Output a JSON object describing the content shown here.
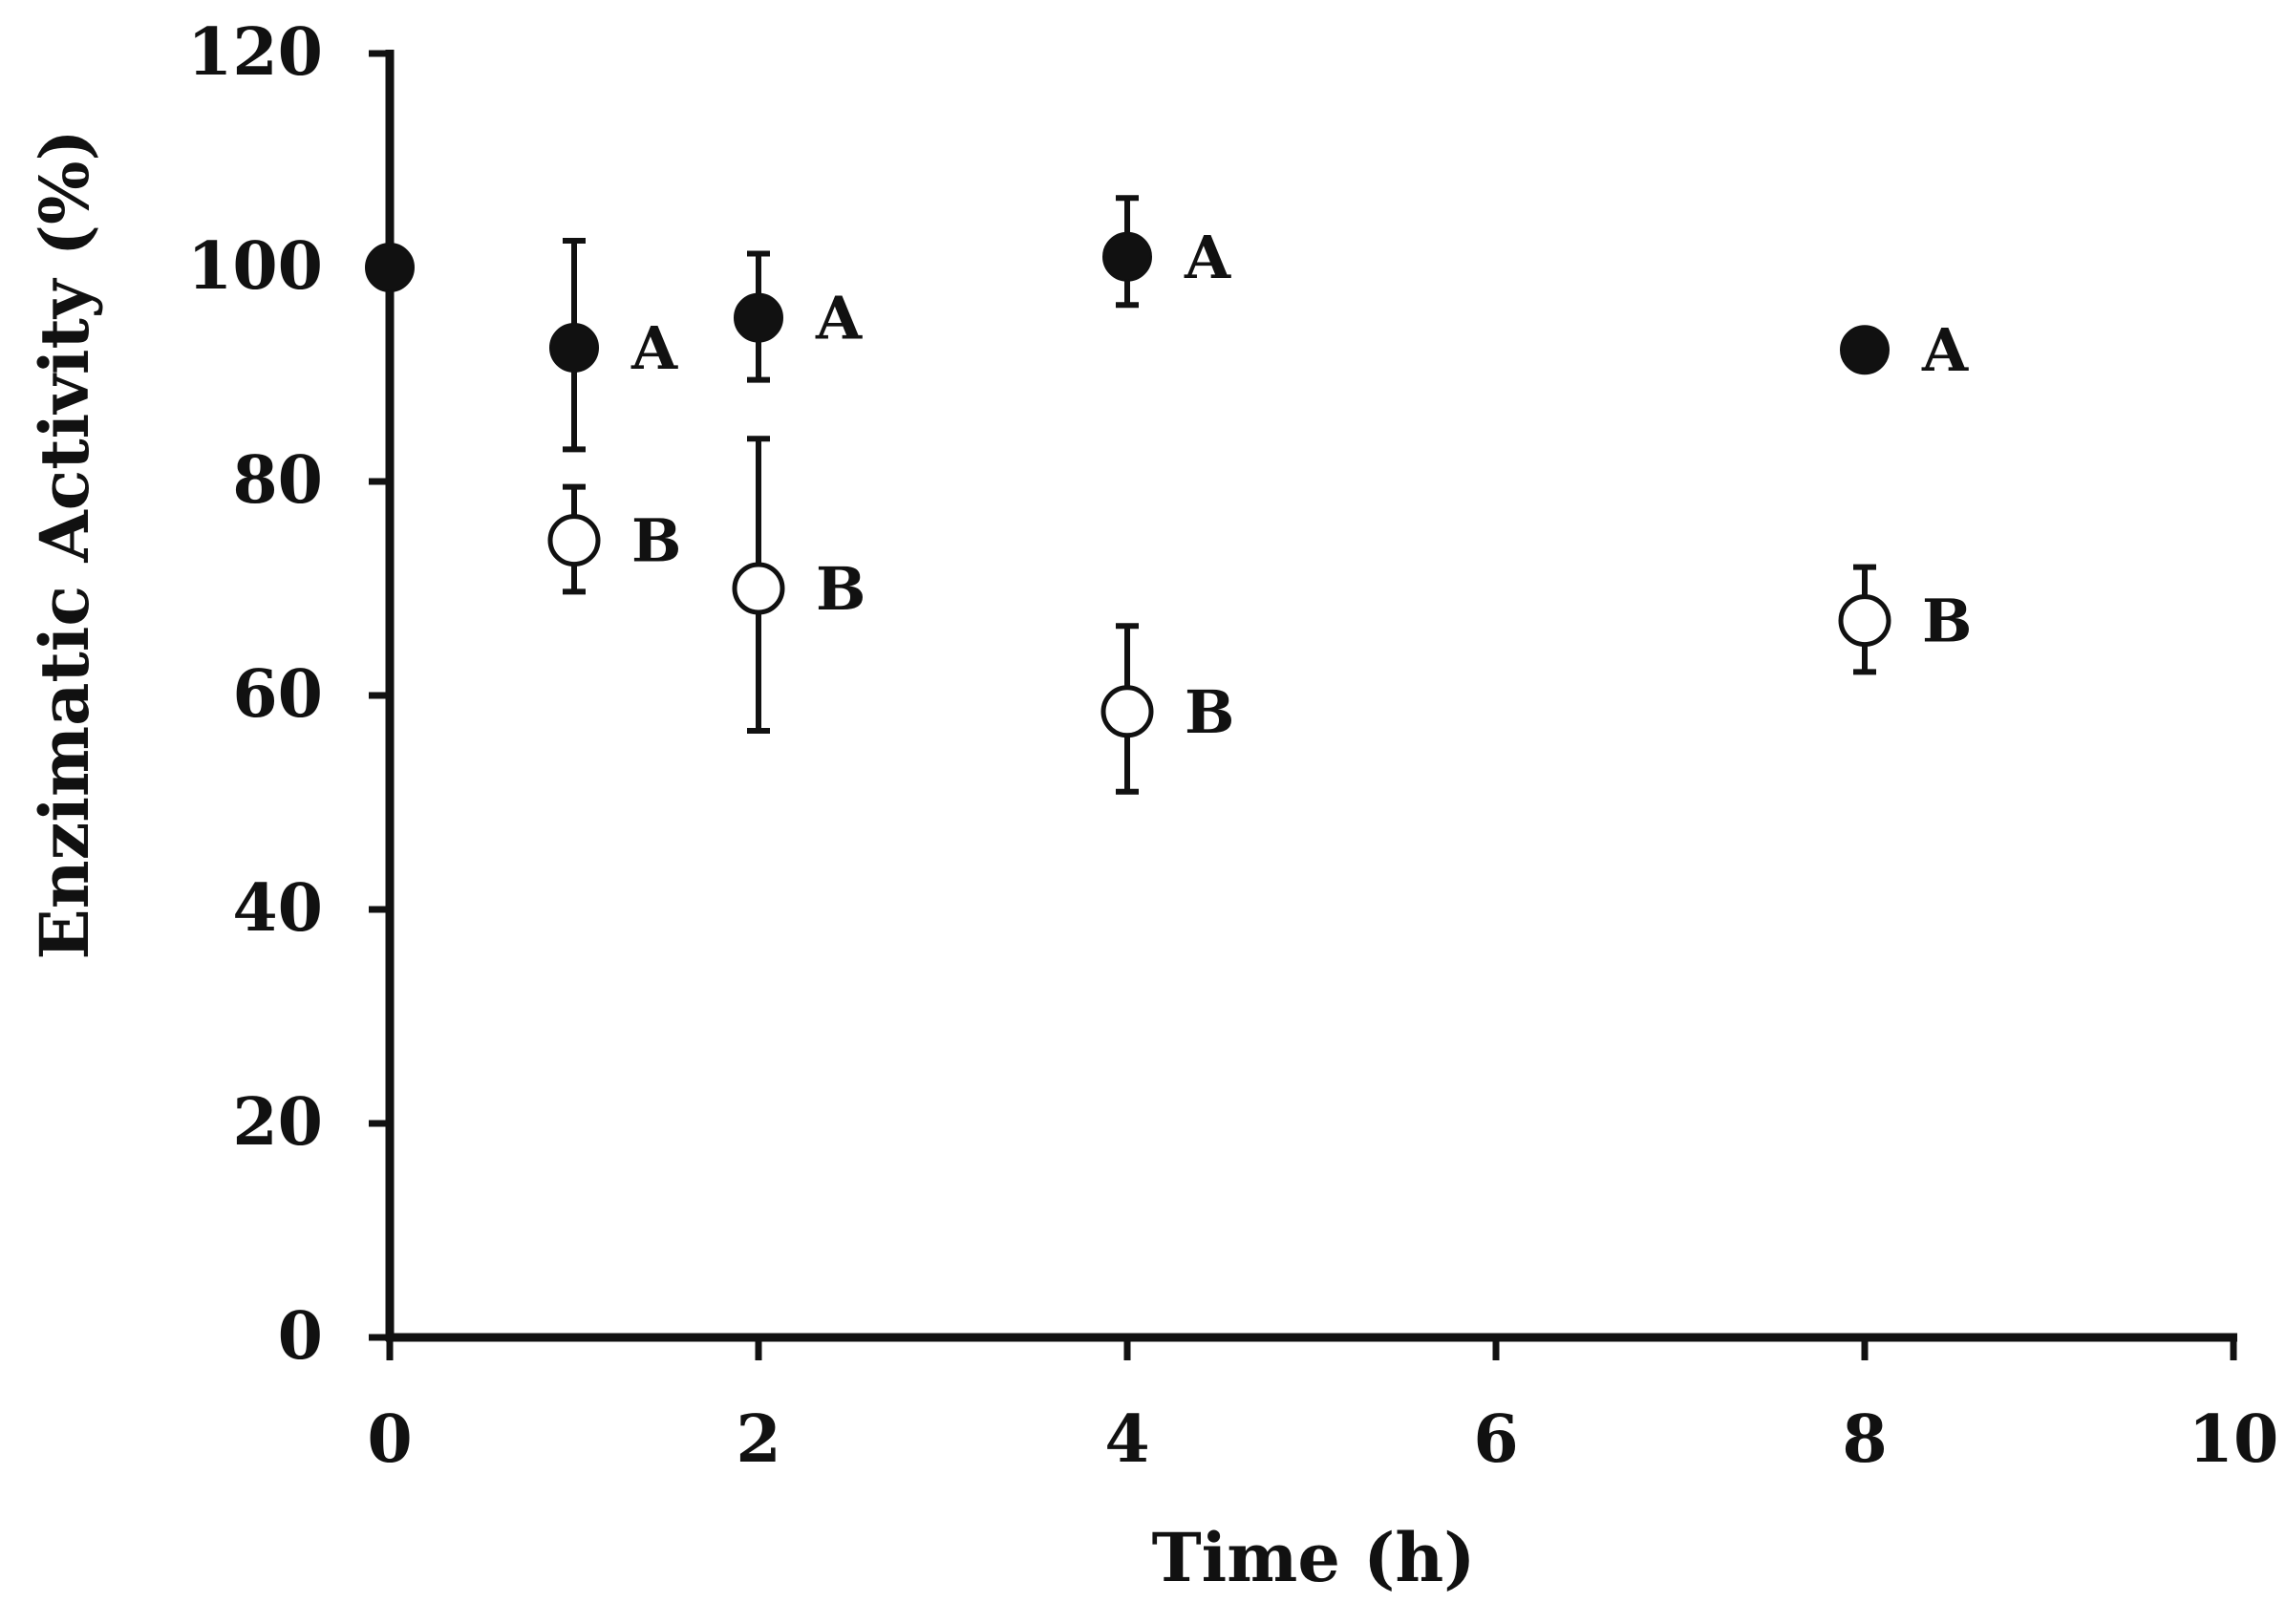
{
  "chart_data": {
    "type": "scatter",
    "title": "",
    "xlabel": "Time (h)",
    "ylabel": "Enzimatic Activity  (%)",
    "xlim": [
      0,
      10
    ],
    "ylim": [
      0,
      120
    ],
    "x_ticks": [
      0,
      2,
      4,
      6,
      8,
      10
    ],
    "y_ticks": [
      0,
      20,
      40,
      60,
      80,
      100,
      120
    ],
    "grid": false,
    "legend": "none",
    "series": [
      {
        "marker": "filled-circle",
        "color": "#111111",
        "points": [
          {
            "x": 0,
            "y": 100,
            "err_low": 0,
            "err_high": 0,
            "label": ""
          },
          {
            "x": 1,
            "y": 92.5,
            "err_low": 9.5,
            "err_high": 10,
            "label": "A"
          },
          {
            "x": 2,
            "y": 95.3,
            "err_low": 5.8,
            "err_high": 6,
            "label": "A"
          },
          {
            "x": 4,
            "y": 101,
            "err_low": 4.5,
            "err_high": 5.5,
            "label": "A"
          },
          {
            "x": 8,
            "y": 92.3,
            "err_low": 0,
            "err_high": 0,
            "label": "A"
          }
        ]
      },
      {
        "marker": "open-circle",
        "color": "#111111",
        "points": [
          {
            "x": 1,
            "y": 74.5,
            "err_low": 4.8,
            "err_high": 5,
            "label": "B"
          },
          {
            "x": 2,
            "y": 70,
            "err_low": 13.3,
            "err_high": 14,
            "label": "B"
          },
          {
            "x": 4,
            "y": 58.5,
            "err_low": 7.5,
            "err_high": 8,
            "label": "B"
          },
          {
            "x": 8,
            "y": 67,
            "err_low": 4.8,
            "err_high": 5,
            "label": "B"
          }
        ]
      }
    ]
  }
}
